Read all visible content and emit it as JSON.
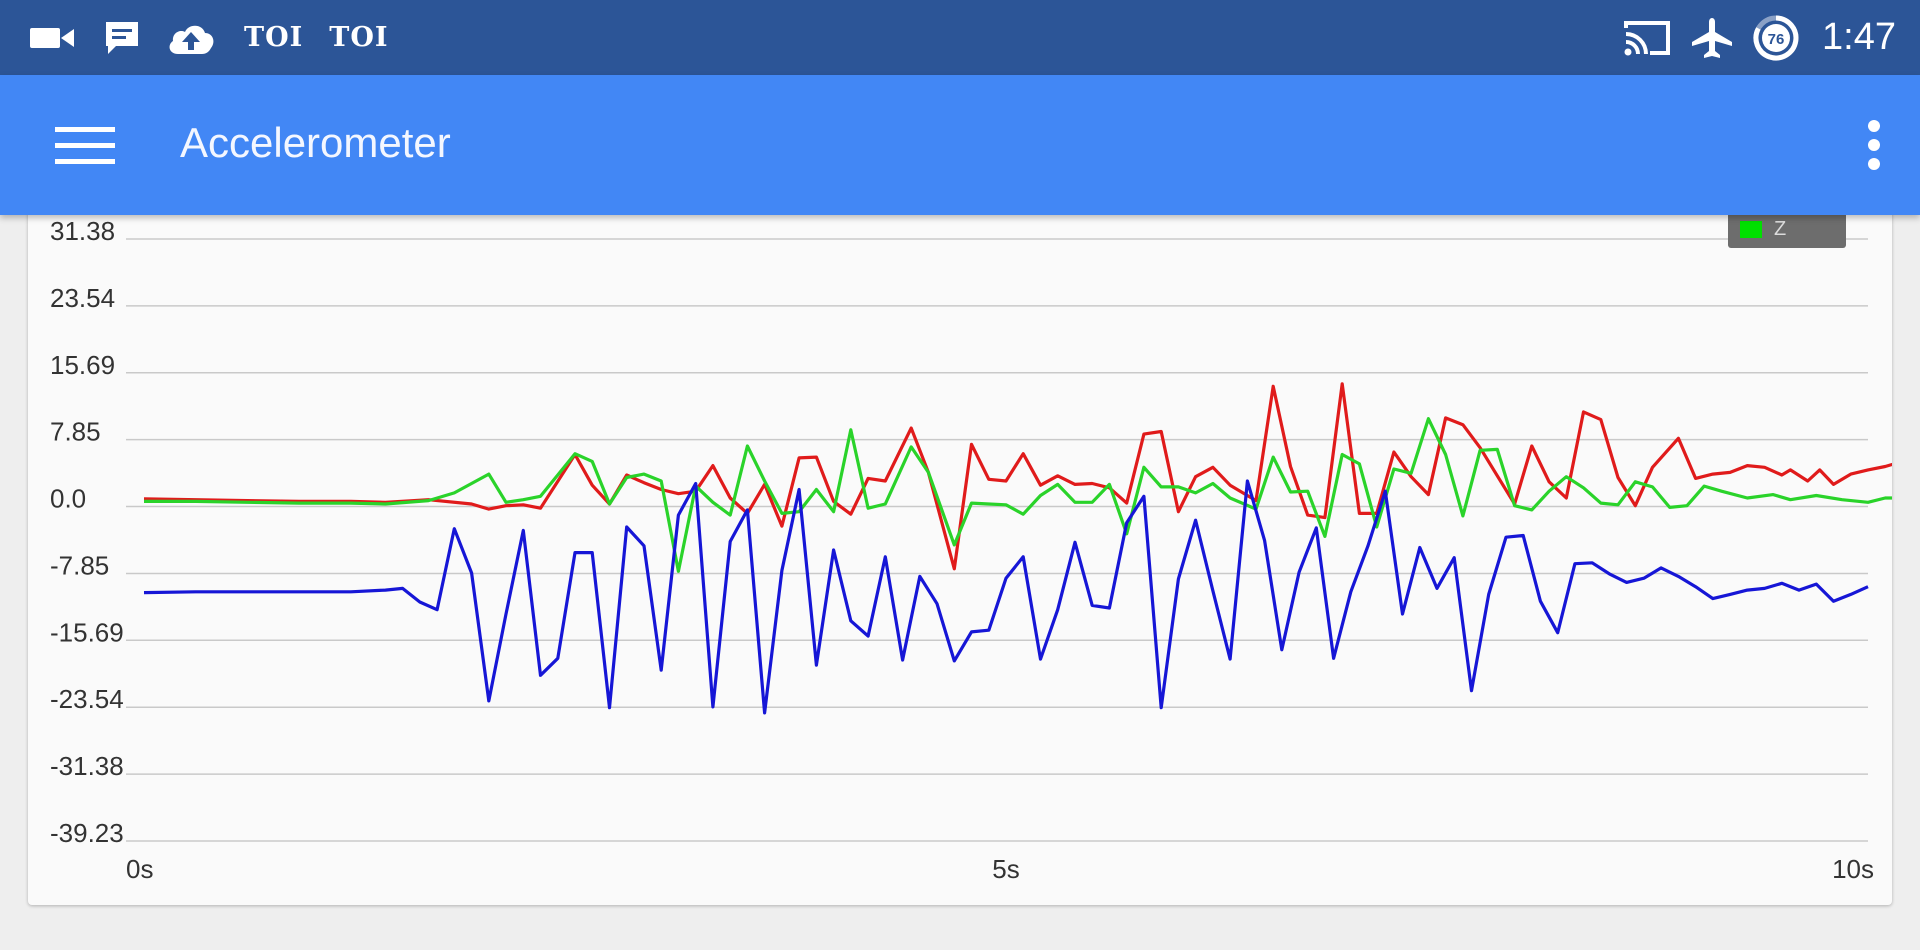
{
  "status_bar": {
    "icons": [
      "video-camera-icon",
      "message-icon",
      "cloud-upload-icon"
    ],
    "news_labels": [
      "TOI",
      "TOI"
    ],
    "right_icons": [
      "cast-icon",
      "airplane-mode-icon",
      "battery-icon"
    ],
    "battery_level": "76",
    "time": "1:47"
  },
  "app_bar": {
    "title": "Accelerometer",
    "menu_icon": "hamburger-menu-icon",
    "overflow_icon": "more-vert-icon"
  },
  "chart_data": {
    "type": "line",
    "xlabel": "",
    "ylabel": "",
    "xlim": [
      0,
      10
    ],
    "ylim": [
      -39.23,
      31.38
    ],
    "y_ticks": [
      31.38,
      23.54,
      15.69,
      7.85,
      0.0,
      -7.85,
      -15.69,
      -23.54,
      -31.38,
      -39.23
    ],
    "y_tick_labels": [
      "31.38",
      "23.54",
      "15.69",
      "7.85",
      "0.0",
      "-7.85",
      "-15.69",
      "-23.54",
      "-31.38",
      "-39.23"
    ],
    "x_ticks": [
      0,
      5,
      10
    ],
    "x_tick_labels": [
      "0s",
      "5s",
      "10s"
    ],
    "grid": true,
    "legend": {
      "placement": "top-right",
      "visible_entry": "Z",
      "visible_color": "#00e000"
    },
    "series": [
      {
        "color": "#e01b1b",
        "points": [
          [
            0.0,
            0.9
          ],
          [
            0.3,
            0.8
          ],
          [
            0.6,
            0.7
          ],
          [
            0.9,
            0.6
          ],
          [
            1.2,
            0.6
          ],
          [
            1.4,
            0.5
          ],
          [
            1.65,
            0.8
          ],
          [
            1.9,
            0.3
          ],
          [
            2.0,
            -0.3
          ],
          [
            2.1,
            0.1
          ],
          [
            2.2,
            0.2
          ],
          [
            2.3,
            -0.2
          ],
          [
            2.5,
            6.1
          ],
          [
            2.6,
            2.5
          ],
          [
            2.7,
            0.3
          ],
          [
            2.8,
            3.7
          ],
          [
            2.9,
            2.8
          ],
          [
            3.0,
            2.0
          ],
          [
            3.1,
            1.5
          ],
          [
            3.2,
            1.8
          ],
          [
            3.3,
            4.8
          ],
          [
            3.4,
            1.0
          ],
          [
            3.5,
            -0.8
          ],
          [
            3.6,
            2.6
          ],
          [
            3.7,
            -2.3
          ],
          [
            3.8,
            5.7
          ],
          [
            3.9,
            5.8
          ],
          [
            4.0,
            0.6
          ],
          [
            4.1,
            -0.9
          ],
          [
            4.2,
            3.3
          ],
          [
            4.3,
            3.0
          ],
          [
            4.45,
            9.2
          ],
          [
            4.55,
            4.0
          ],
          [
            4.7,
            -7.3
          ],
          [
            4.8,
            7.3
          ],
          [
            4.9,
            3.2
          ],
          [
            5.0,
            3.0
          ],
          [
            5.1,
            6.2
          ],
          [
            5.2,
            2.5
          ],
          [
            5.3,
            3.6
          ],
          [
            5.4,
            2.6
          ],
          [
            5.5,
            2.7
          ],
          [
            5.6,
            2.2
          ],
          [
            5.7,
            0.4
          ],
          [
            5.8,
            8.5
          ],
          [
            5.9,
            8.8
          ],
          [
            6.0,
            -0.6
          ],
          [
            6.1,
            3.5
          ],
          [
            6.2,
            4.6
          ],
          [
            6.3,
            2.5
          ],
          [
            6.45,
            0.7
          ],
          [
            6.55,
            14.1
          ],
          [
            6.65,
            4.7
          ],
          [
            6.75,
            -1.0
          ],
          [
            6.85,
            -1.3
          ],
          [
            6.95,
            14.4
          ],
          [
            7.05,
            -0.8
          ],
          [
            7.15,
            -0.8
          ],
          [
            7.25,
            6.4
          ],
          [
            7.35,
            3.5
          ],
          [
            7.45,
            1.4
          ],
          [
            7.55,
            10.4
          ],
          [
            7.65,
            9.6
          ],
          [
            7.75,
            6.9
          ],
          [
            7.85,
            3.6
          ],
          [
            7.95,
            0.3
          ],
          [
            8.05,
            7.1
          ],
          [
            8.15,
            2.9
          ],
          [
            8.25,
            1.0
          ],
          [
            8.35,
            11.1
          ],
          [
            8.45,
            10.2
          ],
          [
            8.55,
            3.4
          ],
          [
            8.65,
            0.1
          ],
          [
            8.75,
            4.6
          ],
          [
            8.9,
            8.0
          ],
          [
            9.0,
            3.3
          ],
          [
            9.1,
            3.8
          ],
          [
            9.2,
            4.0
          ],
          [
            9.3,
            4.8
          ],
          [
            9.4,
            4.6
          ],
          [
            9.5,
            3.7
          ],
          [
            9.55,
            4.3
          ],
          [
            9.65,
            3.0
          ],
          [
            9.72,
            4.3
          ],
          [
            9.8,
            2.6
          ],
          [
            9.9,
            3.8
          ],
          [
            10.0,
            4.3
          ],
          [
            10.1,
            4.7
          ],
          [
            10.2,
            5.3
          ],
          [
            10.3,
            4.8
          ],
          [
            10.4,
            5.9
          ],
          [
            10.5,
            6.1
          ],
          [
            10.57,
            5.8
          ]
        ]
      },
      {
        "color": "#2ad32a",
        "points": [
          [
            0.0,
            0.6
          ],
          [
            0.3,
            0.6
          ],
          [
            0.6,
            0.5
          ],
          [
            0.9,
            0.4
          ],
          [
            1.2,
            0.4
          ],
          [
            1.4,
            0.3
          ],
          [
            1.65,
            0.7
          ],
          [
            1.8,
            1.6
          ],
          [
            2.0,
            3.8
          ],
          [
            2.1,
            0.5
          ],
          [
            2.2,
            0.8
          ],
          [
            2.3,
            1.2
          ],
          [
            2.5,
            6.2
          ],
          [
            2.6,
            5.3
          ],
          [
            2.7,
            0.3
          ],
          [
            2.8,
            3.4
          ],
          [
            2.9,
            3.8
          ],
          [
            3.0,
            3.0
          ],
          [
            3.1,
            -7.6
          ],
          [
            3.2,
            2.4
          ],
          [
            3.3,
            0.5
          ],
          [
            3.4,
            -1.0
          ],
          [
            3.5,
            7.1
          ],
          [
            3.6,
            3.0
          ],
          [
            3.7,
            -0.8
          ],
          [
            3.8,
            -0.6
          ],
          [
            3.9,
            2.0
          ],
          [
            4.0,
            -0.6
          ],
          [
            4.1,
            9.0
          ],
          [
            4.2,
            -0.2
          ],
          [
            4.3,
            0.3
          ],
          [
            4.45,
            7.0
          ],
          [
            4.55,
            4.0
          ],
          [
            4.7,
            -4.5
          ],
          [
            4.8,
            0.4
          ],
          [
            4.9,
            0.3
          ],
          [
            5.0,
            0.2
          ],
          [
            5.1,
            -0.9
          ],
          [
            5.2,
            1.3
          ],
          [
            5.3,
            2.6
          ],
          [
            5.4,
            0.5
          ],
          [
            5.5,
            0.5
          ],
          [
            5.6,
            2.6
          ],
          [
            5.7,
            -3.2
          ],
          [
            5.8,
            4.6
          ],
          [
            5.9,
            2.3
          ],
          [
            6.0,
            2.3
          ],
          [
            6.1,
            1.6
          ],
          [
            6.2,
            2.7
          ],
          [
            6.3,
            1.0
          ],
          [
            6.45,
            -0.3
          ],
          [
            6.55,
            5.8
          ],
          [
            6.65,
            1.7
          ],
          [
            6.75,
            1.8
          ],
          [
            6.85,
            -3.5
          ],
          [
            6.95,
            6.1
          ],
          [
            7.05,
            5.0
          ],
          [
            7.15,
            -2.4
          ],
          [
            7.25,
            4.4
          ],
          [
            7.35,
            3.9
          ],
          [
            7.45,
            10.3
          ],
          [
            7.55,
            6.1
          ],
          [
            7.65,
            -1.1
          ],
          [
            7.75,
            6.6
          ],
          [
            7.85,
            6.7
          ],
          [
            7.95,
            0.1
          ],
          [
            8.05,
            -0.4
          ],
          [
            8.15,
            1.8
          ],
          [
            8.25,
            3.5
          ],
          [
            8.35,
            2.2
          ],
          [
            8.45,
            0.4
          ],
          [
            8.55,
            0.2
          ],
          [
            8.65,
            2.9
          ],
          [
            8.75,
            2.3
          ],
          [
            8.85,
            -0.1
          ],
          [
            8.95,
            0.1
          ],
          [
            9.05,
            2.4
          ],
          [
            9.15,
            1.8
          ],
          [
            9.3,
            1.0
          ],
          [
            9.45,
            1.4
          ],
          [
            9.55,
            0.8
          ],
          [
            9.7,
            1.3
          ],
          [
            9.85,
            0.8
          ],
          [
            10.0,
            0.5
          ],
          [
            10.1,
            1.0
          ],
          [
            10.25,
            1.0
          ],
          [
            10.35,
            0.7
          ],
          [
            10.45,
            -0.7
          ],
          [
            10.55,
            0.6
          ],
          [
            10.65,
            0.8
          ],
          [
            10.75,
            1.0
          ]
        ]
      },
      {
        "color": "#1616d6",
        "points": [
          [
            0.0,
            -10.1
          ],
          [
            0.3,
            -10.0
          ],
          [
            0.6,
            -10.0
          ],
          [
            0.9,
            -10.0
          ],
          [
            1.2,
            -10.0
          ],
          [
            1.4,
            -9.8
          ],
          [
            1.5,
            -9.6
          ],
          [
            1.6,
            -11.2
          ],
          [
            1.7,
            -12.1
          ],
          [
            1.8,
            -2.6
          ],
          [
            1.9,
            -7.8
          ],
          [
            2.0,
            -22.8
          ],
          [
            2.1,
            -12.6
          ],
          [
            2.2,
            -2.8
          ],
          [
            2.3,
            -19.8
          ],
          [
            2.4,
            -17.8
          ],
          [
            2.5,
            -5.4
          ],
          [
            2.6,
            -5.4
          ],
          [
            2.7,
            -23.6
          ],
          [
            2.8,
            -2.4
          ],
          [
            2.9,
            -4.6
          ],
          [
            3.0,
            -19.2
          ],
          [
            3.1,
            -1.0
          ],
          [
            3.2,
            2.7
          ],
          [
            3.3,
            -23.5
          ],
          [
            3.4,
            -4.1
          ],
          [
            3.5,
            -0.4
          ],
          [
            3.6,
            -24.2
          ],
          [
            3.7,
            -7.5
          ],
          [
            3.8,
            2.0
          ],
          [
            3.9,
            -18.6
          ],
          [
            4.0,
            -5.1
          ],
          [
            4.1,
            -13.4
          ],
          [
            4.2,
            -15.2
          ],
          [
            4.3,
            -5.9
          ],
          [
            4.4,
            -18.0
          ],
          [
            4.5,
            -8.2
          ],
          [
            4.6,
            -11.4
          ],
          [
            4.7,
            -18.1
          ],
          [
            4.8,
            -14.7
          ],
          [
            4.9,
            -14.5
          ],
          [
            5.0,
            -8.4
          ],
          [
            5.1,
            -5.9
          ],
          [
            5.2,
            -17.9
          ],
          [
            5.3,
            -12.1
          ],
          [
            5.4,
            -4.2
          ],
          [
            5.5,
            -11.6
          ],
          [
            5.6,
            -11.9
          ],
          [
            5.7,
            -1.9
          ],
          [
            5.8,
            1.2
          ],
          [
            5.9,
            -23.6
          ],
          [
            6.0,
            -8.5
          ],
          [
            6.1,
            -1.6
          ],
          [
            6.2,
            -9.9
          ],
          [
            6.3,
            -17.9
          ],
          [
            6.4,
            3.0
          ],
          [
            6.5,
            -4.0
          ],
          [
            6.6,
            -16.8
          ],
          [
            6.7,
            -7.7
          ],
          [
            6.8,
            -2.5
          ],
          [
            6.9,
            -17.8
          ],
          [
            7.0,
            -10.0
          ],
          [
            7.1,
            -4.6
          ],
          [
            7.2,
            1.8
          ],
          [
            7.3,
            -12.6
          ],
          [
            7.4,
            -4.8
          ],
          [
            7.5,
            -9.6
          ],
          [
            7.6,
            -6.0
          ],
          [
            7.7,
            -21.6
          ],
          [
            7.8,
            -10.3
          ],
          [
            7.9,
            -3.6
          ],
          [
            8.0,
            -3.4
          ],
          [
            8.1,
            -11.1
          ],
          [
            8.2,
            -14.8
          ],
          [
            8.3,
            -6.7
          ],
          [
            8.4,
            -6.6
          ],
          [
            8.5,
            -7.9
          ],
          [
            8.6,
            -8.9
          ],
          [
            8.7,
            -8.4
          ],
          [
            8.8,
            -7.2
          ],
          [
            8.9,
            -8.2
          ],
          [
            9.0,
            -9.4
          ],
          [
            9.1,
            -10.8
          ],
          [
            9.2,
            -10.3
          ],
          [
            9.3,
            -9.8
          ],
          [
            9.4,
            -9.6
          ],
          [
            9.5,
            -9.0
          ],
          [
            9.6,
            -9.8
          ],
          [
            9.7,
            -9.1
          ],
          [
            9.8,
            -11.1
          ],
          [
            9.9,
            -10.3
          ],
          [
            10.0,
            -9.4
          ]
        ]
      }
    ]
  }
}
